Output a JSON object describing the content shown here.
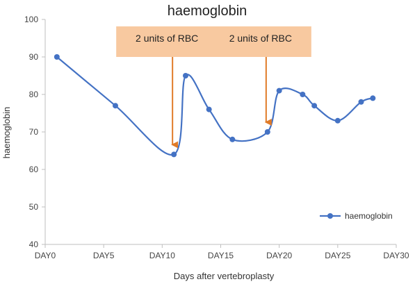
{
  "chart_data": {
    "type": "line",
    "title": "haemoglobin",
    "xlabel": "Days after vertebroplasty",
    "ylabel": "haemoglobin",
    "xlim": [
      0,
      30
    ],
    "ylim": [
      40,
      100
    ],
    "x_ticks": [
      0,
      5,
      10,
      15,
      20,
      25,
      30
    ],
    "x_tick_labels": [
      "DAY0",
      "DAY5",
      "DAY10",
      "DAY15",
      "DAY20",
      "DAY25",
      "DAY30"
    ],
    "y_ticks": [
      40,
      50,
      60,
      70,
      80,
      90,
      100
    ],
    "y_tick_labels": [
      "40",
      "50",
      "60",
      "70",
      "80",
      "90",
      "100"
    ],
    "grid": false,
    "legend_position": "bottom-right",
    "series": [
      {
        "name": "haemoglobin",
        "color": "#4472c4",
        "x": [
          1,
          6,
          11,
          12,
          14,
          16,
          19,
          20,
          22,
          23,
          25,
          27,
          28
        ],
        "y": [
          90,
          77,
          64,
          85,
          76,
          68,
          70,
          81,
          80,
          77,
          73,
          78,
          79
        ]
      }
    ],
    "annotations": [
      {
        "text": "2 units of RBC",
        "target_x": 11,
        "target_y": 64
      },
      {
        "text": "2 units of RBC",
        "target_x": 19,
        "target_y": 70
      }
    ],
    "annotation_box_color": "#f8c9a0",
    "arrow_color": "#e07b28"
  }
}
